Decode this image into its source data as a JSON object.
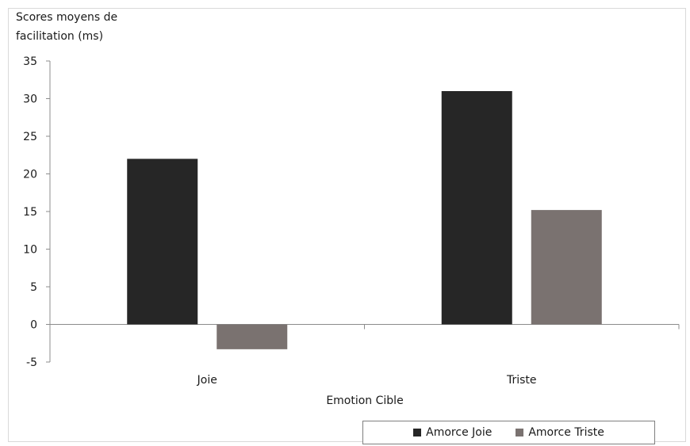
{
  "chart_data": {
    "type": "bar",
    "ylabel": "Scores moyens de facilitation (ms)",
    "ylabel_lines": [
      "Scores moyens de",
      "facilitation (ms)"
    ],
    "xlabel": "Emotion Cible",
    "categories": [
      "Joie",
      "Triste"
    ],
    "series": [
      {
        "name": "Amorce Joie",
        "values": [
          22,
          31
        ],
        "color": "#262626"
      },
      {
        "name": "Amorce Triste",
        "values": [
          -3.3,
          15.2
        ],
        "color": "#7a7270"
      }
    ],
    "ylim": [
      -5,
      35
    ],
    "yticks": [
      -5,
      0,
      5,
      10,
      15,
      20,
      25,
      30,
      35
    ],
    "grid": false,
    "legend_position": "bottom-right"
  }
}
